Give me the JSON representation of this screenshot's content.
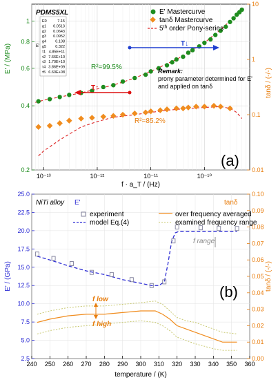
{
  "chart_data": [
    {
      "type": "scatter",
      "panel_label": "(a)",
      "title": "PDMS5XL",
      "xlabel": "f · a_T / (Hz)",
      "ylabel_left": "E' / (MPa)",
      "ylabel_right": "tanδ / (-/-)",
      "x_scale": "log",
      "xlim": [
        6e-14,
        7e-10
      ],
      "y_left_scale": "log",
      "y_left_lim": [
        0.2,
        1.2
      ],
      "y_right_scale": "log",
      "y_right_lim": [
        0.01,
        10
      ],
      "x_ticks": [
        1e-13,
        1e-12,
        1e-11,
        1e-10
      ],
      "x_tick_labels": [
        "10⁻¹³",
        "10⁻¹²",
        "10⁻¹¹",
        "10⁻¹⁰"
      ],
      "y_left_ticks": [
        0.2,
        0.4,
        0.6,
        0.8,
        1.0
      ],
      "y_left_tick_labels": [
        "0.2",
        "0.4",
        "0.6",
        "0.8",
        "1"
      ],
      "y_right_ticks": [
        0.01,
        0.1,
        1,
        10
      ],
      "y_right_tick_labels": [
        "0.01",
        "0.1",
        "1",
        "10"
      ],
      "grid": true,
      "legend": {
        "position": "top-right",
        "entries": [
          "E' Mastercurve",
          "tanδ Mastercurve",
          "5th order Pony-series"
        ]
      },
      "colors": {
        "E": "#1e8c1e",
        "tand": "#f08c1e",
        "fit": "#dd2222",
        "green_axis": "#1a8a1a",
        "orange_axis": "#e87d0d"
      },
      "series": [
        {
          "name": "E' Mastercurve",
          "axis": "left",
          "x": [
            8e-14,
            1.3e-13,
            2e-13,
            3e-13,
            5e-13,
            8e-13,
            1.3e-12,
            2e-12,
            3e-12,
            5e-12,
            8e-12,
            1e-11,
            1.4e-11,
            2e-11,
            2.5e-11,
            3e-11,
            4e-11,
            5e-11,
            6e-11,
            8e-11,
            1e-10,
            1.3e-10,
            1.6e-10,
            2e-10,
            2.5e-10,
            3e-10,
            3.5e-10,
            4e-10,
            4.5e-10,
            5e-10
          ],
          "y": [
            0.42,
            0.43,
            0.44,
            0.45,
            0.46,
            0.47,
            0.49,
            0.5,
            0.52,
            0.54,
            0.56,
            0.58,
            0.6,
            0.62,
            0.64,
            0.66,
            0.68,
            0.71,
            0.73,
            0.76,
            0.79,
            0.82,
            0.86,
            0.9,
            0.94,
            0.99,
            1.03,
            1.07,
            1.1,
            1.13
          ]
        },
        {
          "name": "tanδ Mastercurve",
          "axis": "right",
          "x": [
            8e-14,
            1.3e-13,
            2e-13,
            3e-13,
            5e-13,
            8e-13,
            1.3e-12,
            2e-12,
            3e-12,
            5e-12,
            8e-12,
            1e-11,
            1.5e-11,
            2e-11,
            3e-11,
            4e-11,
            5e-11,
            7e-11,
            1e-10,
            1.5e-10,
            2e-10,
            3e-10
          ],
          "y": [
            0.06,
            0.063,
            0.07,
            0.078,
            0.085,
            0.088,
            0.092,
            0.095,
            0.1,
            0.105,
            0.11,
            0.115,
            0.12,
            0.125,
            0.13,
            0.13,
            0.135,
            0.14,
            0.14,
            0.145,
            0.14,
            0.13
          ]
        },
        {
          "name": "5th order Pony-series",
          "axis": "left",
          "x": [
            7e-14,
            1e-13,
            2e-13,
            5e-13,
            1e-12,
            2e-12,
            5e-12,
            1e-11,
            2e-11,
            3e-11,
            5e-11,
            7e-11,
            1e-10,
            1.5e-10,
            2e-10,
            3e-10,
            4e-10,
            5e-10
          ],
          "y": [
            0.415,
            0.425,
            0.44,
            0.46,
            0.48,
            0.5,
            0.54,
            0.58,
            0.63,
            0.66,
            0.71,
            0.75,
            0.79,
            0.86,
            0.91,
            1.0,
            1.07,
            1.13
          ]
        },
        {
          "name": "tanδ fit",
          "axis": "right",
          "x": [
            8e-14,
            1e-13,
            2e-13,
            5e-13,
            1e-12,
            2e-12,
            5e-12,
            1e-11,
            2e-11,
            5e-11,
            1e-10,
            2e-10,
            3e-10,
            4e-10,
            5e-10
          ],
          "y": [
            0.018,
            0.022,
            0.035,
            0.06,
            0.075,
            0.09,
            0.1,
            0.11,
            0.12,
            0.13,
            0.135,
            0.14,
            0.13,
            0.11,
            0.085
          ]
        }
      ],
      "annotations": {
        "r2_e": "R²=99.5%",
        "r2_tand": "R²=85.2%",
        "T_arrow_down": "T↓",
        "T_arrow_up": "T↑",
        "remark_title": "Remark:",
        "remark_line1": "prony parameter determined for E'",
        "remark_line2": "and applied on tanδ"
      },
      "prony_table": {
        "rows": [
          [
            "E0",
            "7.15"
          ],
          [
            "g1",
            "0.0513"
          ],
          [
            "g2",
            "0.0643"
          ],
          [
            "g3",
            "0.0952"
          ],
          [
            "g4",
            "0.108"
          ],
          [
            "g5",
            "0.322"
          ],
          [
            "τ1",
            "4.85E+11"
          ],
          [
            "τ2",
            "7.66E+10"
          ],
          [
            "τ3",
            "1.70E+10"
          ],
          [
            "τ4",
            "3.86E+09"
          ],
          [
            "τ5",
            "6.60E+08"
          ]
        ],
        "side_label": "E'"
      }
    },
    {
      "type": "line",
      "panel_label": "(b)",
      "title": "NiTi alloy",
      "xlabel": "temperature / (K)",
      "ylabel_left": "E' / (GPa)",
      "ylabel_right": "tanδ / (-/-)",
      "xlim": [
        240,
        360
      ],
      "y_left_lim": [
        2.5,
        25
      ],
      "y_right_lim": [
        0,
        0.1
      ],
      "x_ticks": [
        240,
        250,
        260,
        270,
        280,
        290,
        300,
        310,
        320,
        330,
        340,
        350,
        360
      ],
      "y_left_ticks": [
        2.5,
        5.0,
        7.5,
        10.0,
        12.5,
        15.0,
        17.5,
        20.0,
        22.5,
        25.0
      ],
      "y_left_tick_labels": [
        "2.5",
        "5.0",
        "7.5",
        "10.0",
        "12.5",
        "15.0",
        "17.5",
        "20.0",
        "22.5",
        "25.0"
      ],
      "y_right_ticks": [
        0,
        0.01,
        0.02,
        0.03,
        0.04,
        0.05,
        0.06,
        0.07,
        0.08,
        0.09,
        0.1
      ],
      "y_right_tick_labels": [
        "0.00",
        "0.01",
        "0.02",
        "0.03",
        "0.04",
        "0.05",
        "0.06",
        "0.07",
        "0.08",
        "0.09",
        "0.10"
      ],
      "grid": true,
      "legend": {
        "position": "top",
        "entries": [
          "experiment",
          "model Eq.(4)",
          "over frequency averaged",
          "examined frequency range"
        ]
      },
      "axis_tag_left": "E'",
      "axis_tag_right": "tanδ",
      "colors": {
        "exp": "#7f7f9a",
        "model": "#2a2ad4",
        "tan": "#f08c1e",
        "tan_range": "#c8c870",
        "blue_axis": "#2a2ad4",
        "orange_axis": "#e87d0d"
      },
      "series": [
        {
          "name": "experiment",
          "axis": "left",
          "x": [
            243,
            252,
            262,
            273,
            284,
            295,
            306,
            313,
            318,
            320,
            333,
            343,
            353
          ],
          "y": [
            16.8,
            16.2,
            15.5,
            14.3,
            14.0,
            13.3,
            12.5,
            13.0,
            18.6,
            20.5,
            20.4,
            20.3,
            20.3
          ]
        },
        {
          "name": "model Eq.(4)",
          "axis": "left",
          "x": [
            243,
            250,
            260,
            270,
            280,
            290,
            300,
            306,
            310,
            313,
            315,
            317,
            319,
            321,
            330,
            340,
            353
          ],
          "y": [
            16.5,
            16.0,
            15.2,
            14.5,
            14.0,
            13.3,
            12.8,
            12.5,
            12.5,
            13.0,
            15.5,
            18.5,
            19.7,
            19.9,
            19.9,
            19.9,
            19.9
          ]
        },
        {
          "name": "over frequency averaged",
          "axis": "right",
          "x": [
            243,
            250,
            260,
            270,
            280,
            290,
            300,
            308,
            312,
            316,
            320,
            325,
            330,
            340,
            345,
            353
          ],
          "y": [
            0.022,
            0.024,
            0.026,
            0.027,
            0.027,
            0.028,
            0.029,
            0.029,
            0.027,
            0.024,
            0.02,
            0.018,
            0.016,
            0.012,
            0.01,
            0.01
          ]
        },
        {
          "name": "examined frequency range upper",
          "axis": "right",
          "x": [
            243,
            250,
            260,
            270,
            280,
            290,
            300,
            308,
            312,
            316,
            320,
            325,
            330,
            340,
            345,
            353
          ],
          "y": [
            0.027,
            0.029,
            0.031,
            0.032,
            0.032,
            0.033,
            0.034,
            0.035,
            0.033,
            0.029,
            0.025,
            0.023,
            0.022,
            0.018,
            0.016,
            0.015
          ]
        },
        {
          "name": "examined frequency range lower",
          "axis": "right",
          "x": [
            243,
            250,
            260,
            270,
            280,
            290,
            300,
            308,
            312,
            316,
            320,
            325,
            330,
            340,
            345,
            353
          ],
          "y": [
            0.015,
            0.017,
            0.019,
            0.02,
            0.021,
            0.022,
            0.023,
            0.022,
            0.02,
            0.017,
            0.013,
            0.011,
            0.009,
            0.006,
            0.005,
            0.005
          ]
        }
      ],
      "annotations": {
        "f_range": "f range",
        "f_low": "f low",
        "f_high": "f high"
      }
    }
  ]
}
